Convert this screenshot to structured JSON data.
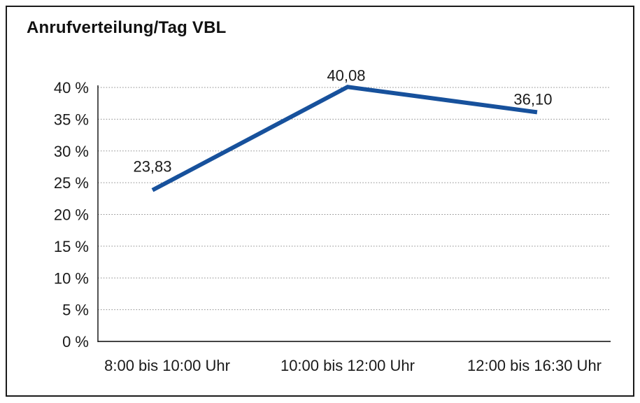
{
  "chart_data": {
    "type": "line",
    "title": "Anrufverteilung/Tag VBL",
    "categories": [
      "8:00 bis 10:00 Uhr",
      "10:00 bis 12:00 Uhr",
      "12:00 bis 16:30 Uhr"
    ],
    "values": [
      23.83,
      40.08,
      36.1
    ],
    "data_labels": [
      "23,83",
      "40,08",
      "36,10"
    ],
    "y_ticks": [
      0,
      5,
      10,
      15,
      20,
      25,
      30,
      35,
      40
    ],
    "y_tick_labels": [
      "0 %",
      "5 %",
      "10 %",
      "15 %",
      "20 %",
      "25 %",
      "30 %",
      "35 %",
      "40 %"
    ],
    "ylim": [
      0,
      40
    ],
    "xlabel": "",
    "ylabel": "",
    "grid": "horizontal-dotted",
    "legend": "none",
    "colors": {
      "line": "#17519c",
      "grid": "#8a8a8a",
      "baseline": "#444444",
      "axis": "#1a1a1a",
      "text": "#1a1a1a",
      "frame": "#1a1a1a",
      "background": "#ffffff"
    }
  }
}
